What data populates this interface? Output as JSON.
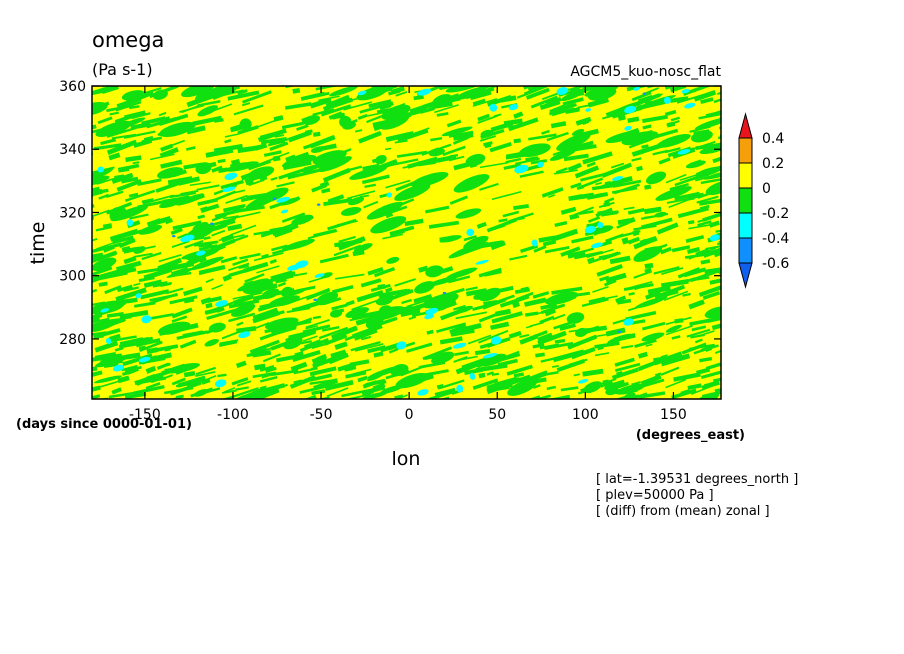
{
  "chart_data": {
    "type": "heatmap",
    "title": "omega",
    "units": "(Pa s-1)",
    "subtitle": "AGCM5_kuo-nosc_flat",
    "xlabel": "lon",
    "x_units": "(degrees_east)",
    "ylabel": "time",
    "y_units": "(days since 0000-01-01)",
    "xlim": [
      -180,
      177
    ],
    "ylim": [
      261,
      360
    ],
    "x_ticks": [
      -150,
      -100,
      -50,
      0,
      50,
      100,
      150
    ],
    "x_tick_labels": [
      "-150",
      "-100",
      "-50",
      "0",
      "50",
      "100",
      "150"
    ],
    "y_ticks": [
      280,
      300,
      320,
      340,
      360
    ],
    "y_tick_labels": [
      "280",
      "300",
      "320",
      "340",
      "360"
    ],
    "colorbar": {
      "levels": [
        -0.6,
        -0.4,
        -0.2,
        0,
        0.2,
        0.4
      ],
      "labels": [
        "0.4",
        "0.2",
        "0",
        "-0.2",
        "-0.4",
        "-0.6"
      ],
      "colors": [
        "#e8141e",
        "#f5a00a",
        "#ffff00",
        "#10e010",
        "#00ffff",
        "#1090ff",
        "#1060f0"
      ]
    },
    "notes": [
      "[ lat=-1.39531 degrees_north ]",
      "[ plev=50000 Pa ]",
      "[ (diff) from (mean) zonal ]"
    ]
  }
}
